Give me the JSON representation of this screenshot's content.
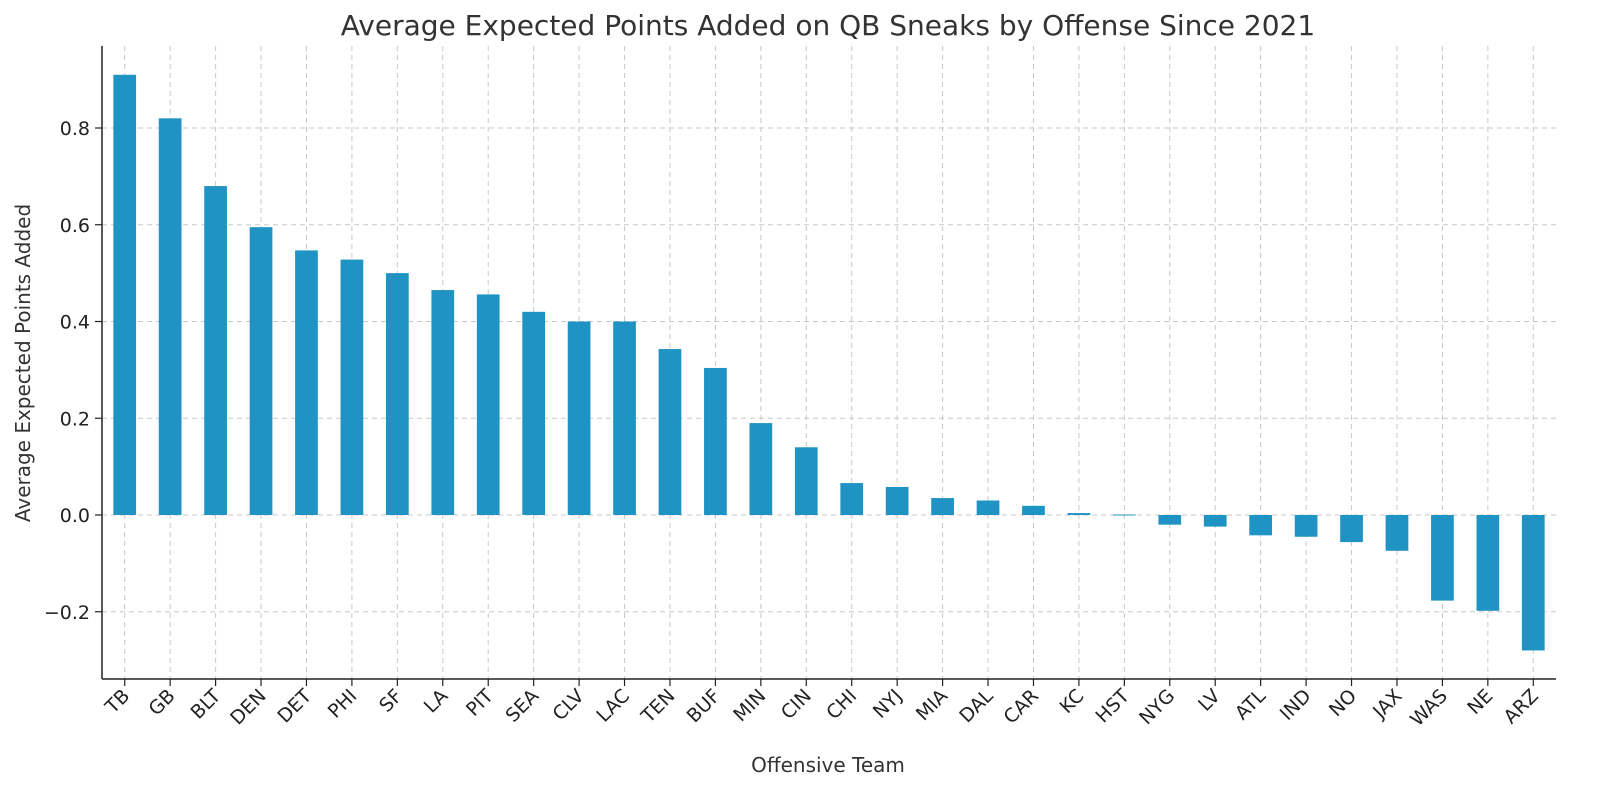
{
  "chart_data": {
    "type": "bar",
    "title": "Average Expected Points Added on QB Sneaks by Offense Since 2021",
    "xlabel": "Offensive Team",
    "ylabel": "Average Expected Points Added",
    "categories": [
      "TB",
      "GB",
      "BLT",
      "DEN",
      "DET",
      "PHI",
      "SF",
      "LA",
      "PIT",
      "SEA",
      "CLV",
      "LAC",
      "TEN",
      "BUF",
      "MIN",
      "CIN",
      "CHI",
      "NYJ",
      "MIA",
      "DAL",
      "CAR",
      "KC",
      "HST",
      "NYG",
      "LV",
      "ATL",
      "IND",
      "NO",
      "JAX",
      "WAS",
      "NE",
      "ARZ"
    ],
    "values": [
      0.91,
      0.82,
      0.68,
      0.595,
      0.547,
      0.528,
      0.5,
      0.465,
      0.456,
      0.42,
      0.4,
      0.4,
      0.343,
      0.304,
      0.19,
      0.14,
      0.066,
      0.058,
      0.035,
      0.03,
      0.019,
      0.004,
      0.001,
      -0.02,
      -0.024,
      -0.042,
      -0.045,
      -0.056,
      -0.074,
      -0.177,
      -0.198,
      -0.28
    ],
    "yticks": [
      -0.2,
      0.0,
      0.2,
      0.4,
      0.6,
      0.8
    ],
    "ytick_labels": [
      "−0.2",
      "0.0",
      "0.2",
      "0.4",
      "0.6",
      "0.8"
    ],
    "ylim": [
      -0.335,
      0.975
    ],
    "grid": true,
    "bar_color": "#1f93c4"
  }
}
